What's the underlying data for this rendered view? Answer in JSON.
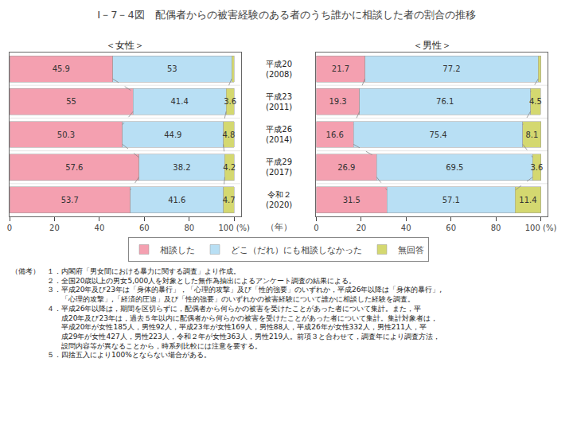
{
  "title": "I－7－4図　配偶者からの被害経験のある者のうち誰かに相談した者の割合の推移",
  "annotations": [
    "（備考）　１．内閣府「男女間における暴力に関する調査」より作成。",
    "　　　　　２．全国20歳以上の男女5,000人を対象とした無作為抽出によるアンケート調査の結果による。",
    "　　　　　３．平成20年及び23年は「身体的暴行」，「心理的攻撃」及び「性的強要」のいずれか，平成26年以降は「身体的暴行」,",
    "　　　　　　　「心理的攻撃」,「経済的圧迫」及び「性的強要」のいずれかの被害経験について誰かに相談した経験を調査。",
    "　　　　　４．平成26年以降は，期間を区切らずに，配偶者から何らかの被害を受けたことがあった者について集計。また，平",
    "　　　　　　　成20年及び23年は，過去５年以内に配偶者から何らかの被害を受けたことがあった者について集計。集計対象者は，",
    "　　　　　　　平成20年が女性185人，男性92人，平成23年が女性169人，男性88人，平成26年が女性332人，男性211人，平",
    "　　　　　　　成29年が女性427人，男性223人，令和２年が女性363人，男性219人。前項３と合わせて，調査年により調査方法，",
    "　　　　　　　設問内容等が異なることから，時系列比較には注意を要する。",
    "　　　　　５．四捨五入により100%とならない場合がある。"
  ],
  "chart_data": [
    {
      "type": "bar",
      "title": "＜女性＞",
      "orientation": "horizontal",
      "stacked": true,
      "categories": [
        "平成20 (2008)",
        "平成23 (2011)",
        "平成26 (2014)",
        "平成29 (2017)",
        "令和２ (2020)"
      ],
      "series": [
        {
          "name": "相談した",
          "color": "#f4a0b0",
          "values": [
            45.9,
            55.0,
            50.3,
            57.6,
            53.7
          ]
        },
        {
          "name": "どこ（だれ）にも相談しなかった",
          "color": "#b8dff4",
          "values": [
            53.0,
            41.4,
            44.9,
            38.2,
            41.6
          ]
        },
        {
          "name": "無回答",
          "color": "#d4d870",
          "values": [
            1.1,
            3.6,
            4.8,
            4.2,
            4.7
          ],
          "value_labels": [
            null,
            "3.6",
            "4.8",
            "4.2",
            "4.7"
          ]
        }
      ],
      "xlim": [
        0,
        103
      ],
      "xticks": [
        0,
        20,
        40,
        60,
        80,
        {
          "value": 100,
          "label": "100 (%)"
        }
      ],
      "grid": false,
      "legend": "bottom",
      "data_labels": true,
      "tick_labels": "x"
    },
    {
      "type": "bar",
      "title": "＜男性＞",
      "orientation": "horizontal",
      "stacked": true,
      "ylabel": "（年）",
      "categories": [
        "平成20 (2008)",
        "平成23 (2011)",
        "平成26 (2014)",
        "平成29 (2017)",
        "令和２ (2020)"
      ],
      "series": [
        {
          "name": "相談した",
          "color": "#f4a0b0",
          "values": [
            21.7,
            19.3,
            16.6,
            26.9,
            31.5
          ]
        },
        {
          "name": "どこ（だれ）にも相談しなかった",
          "color": "#b8dff4",
          "values": [
            77.2,
            76.1,
            75.4,
            69.5,
            57.1
          ]
        },
        {
          "name": "無回答",
          "color": "#d4d870",
          "values": [
            1.1,
            4.5,
            8.1,
            3.6,
            11.4
          ],
          "value_labels": [
            null,
            "4.5",
            "8.1",
            "3.6",
            "11.4"
          ]
        }
      ],
      "xlim": [
        0,
        103
      ],
      "xticks": [
        0,
        20,
        40,
        60,
        80,
        {
          "value": 100,
          "label": "100 (%)"
        }
      ],
      "grid": false,
      "data_labels": true
    }
  ]
}
